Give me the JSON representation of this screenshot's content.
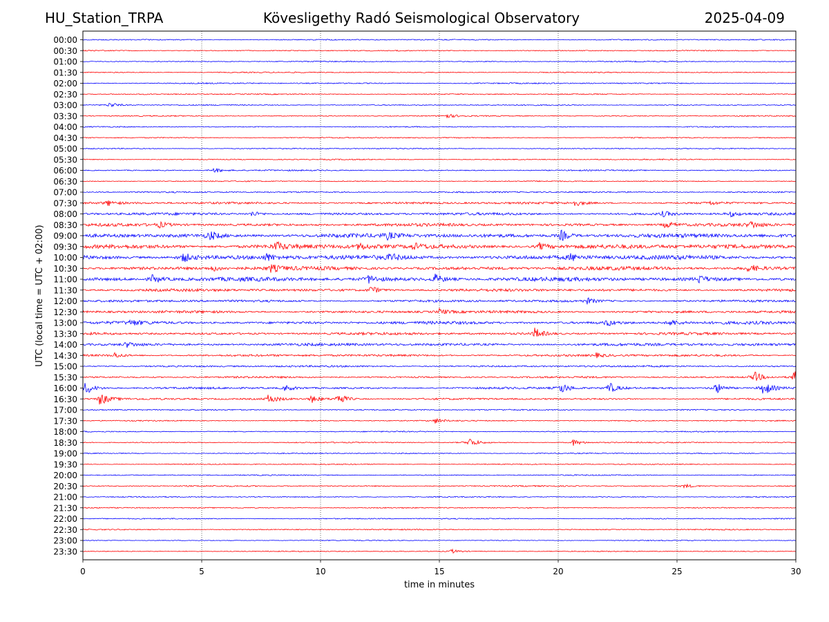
{
  "header": {
    "station": "HU_Station_TRPA",
    "observatory": "Kövesligethy Radó Seismological Observatory",
    "date": "2025-04-09"
  },
  "chart_data": {
    "type": "line",
    "title": "Kövesligethy Radó Seismological Observatory",
    "xlabel": "time in minutes",
    "ylabel": "UTC (local time = UTC + 02:00)",
    "xlim": [
      0,
      30
    ],
    "xticks": [
      0,
      5,
      10,
      15,
      20,
      25,
      30
    ],
    "grid": "vertical dotted lines at 5-minute intervals",
    "colors": {
      "even_rows": "#0000ff",
      "odd_rows": "#ff0000"
    },
    "rows": [
      "00:00",
      "00:30",
      "01:00",
      "01:30",
      "02:00",
      "02:30",
      "03:00",
      "03:30",
      "04:00",
      "04:30",
      "05:00",
      "05:30",
      "06:00",
      "06:30",
      "07:00",
      "07:30",
      "08:00",
      "08:30",
      "09:00",
      "09:30",
      "10:00",
      "10:30",
      "11:00",
      "11:30",
      "12:00",
      "12:30",
      "13:00",
      "13:30",
      "14:00",
      "14:30",
      "15:00",
      "15:30",
      "16:00",
      "16:30",
      "17:00",
      "17:30",
      "18:00",
      "18:30",
      "19:00",
      "19:30",
      "20:00",
      "20:30",
      "21:00",
      "21:30",
      "22:00",
      "22:30",
      "23:00",
      "23:30"
    ],
    "noise_level": [
      0.6,
      0.6,
      0.6,
      0.6,
      0.7,
      0.6,
      0.6,
      0.6,
      0.6,
      0.6,
      0.6,
      0.6,
      0.7,
      0.6,
      0.8,
      1.2,
      1.4,
      1.6,
      2.2,
      2.4,
      2.4,
      2.0,
      2.2,
      1.5,
      1.3,
      1.4,
      1.6,
      1.4,
      1.5,
      1.2,
      1.0,
      1.0,
      1.1,
      1.0,
      0.7,
      0.6,
      0.6,
      0.6,
      0.6,
      0.6,
      0.6,
      0.7,
      0.6,
      0.6,
      0.6,
      0.6,
      0.5,
      0.5
    ],
    "events": [
      {
        "row": "03:00",
        "t": 1.1,
        "amp": 4
      },
      {
        "row": "03:30",
        "t": 15.3,
        "amp": 3
      },
      {
        "row": "06:00",
        "t": 5.5,
        "amp": 4
      },
      {
        "row": "07:30",
        "t": 1.0,
        "amp": 4
      },
      {
        "row": "07:30",
        "t": 20.7,
        "amp": 4
      },
      {
        "row": "07:30",
        "t": 26.3,
        "amp": 3
      },
      {
        "row": "08:00",
        "t": 7.1,
        "amp": 4
      },
      {
        "row": "08:00",
        "t": 24.4,
        "amp": 4
      },
      {
        "row": "08:00",
        "t": 27.2,
        "amp": 4
      },
      {
        "row": "08:30",
        "t": 3.2,
        "amp": 4
      },
      {
        "row": "08:30",
        "t": 24.5,
        "amp": 5
      },
      {
        "row": "08:30",
        "t": 28.1,
        "amp": 5
      },
      {
        "row": "09:00",
        "t": 5.3,
        "amp": 7
      },
      {
        "row": "09:00",
        "t": 20.1,
        "amp": 8
      },
      {
        "row": "09:00",
        "t": 12.8,
        "amp": 4
      },
      {
        "row": "09:30",
        "t": 8.1,
        "amp": 6
      },
      {
        "row": "09:30",
        "t": 11.6,
        "amp": 5
      },
      {
        "row": "09:30",
        "t": 13.9,
        "amp": 4
      },
      {
        "row": "09:30",
        "t": 19.2,
        "amp": 5
      },
      {
        "row": "10:00",
        "t": 4.2,
        "amp": 7
      },
      {
        "row": "10:00",
        "t": 7.7,
        "amp": 5
      },
      {
        "row": "10:00",
        "t": 12.9,
        "amp": 5
      },
      {
        "row": "10:00",
        "t": 20.5,
        "amp": 5
      },
      {
        "row": "10:30",
        "t": 5.4,
        "amp": 4
      },
      {
        "row": "10:30",
        "t": 7.9,
        "amp": 5
      },
      {
        "row": "10:30",
        "t": 28.0,
        "amp": 6
      },
      {
        "row": "11:00",
        "t": 2.9,
        "amp": 6
      },
      {
        "row": "11:00",
        "t": 12.0,
        "amp": 6
      },
      {
        "row": "11:00",
        "t": 14.8,
        "amp": 7
      },
      {
        "row": "11:00",
        "t": 25.9,
        "amp": 5
      },
      {
        "row": "11:30",
        "t": 12.1,
        "amp": 6
      },
      {
        "row": "12:00",
        "t": 21.2,
        "amp": 4
      },
      {
        "row": "12:30",
        "t": 15.0,
        "amp": 4
      },
      {
        "row": "13:00",
        "t": 2.0,
        "amp": 4
      },
      {
        "row": "13:00",
        "t": 22.0,
        "amp": 5
      },
      {
        "row": "13:00",
        "t": 24.7,
        "amp": 5
      },
      {
        "row": "13:30",
        "t": 19.0,
        "amp": 8
      },
      {
        "row": "14:00",
        "t": 1.8,
        "amp": 4
      },
      {
        "row": "14:30",
        "t": 1.3,
        "amp": 4
      },
      {
        "row": "14:30",
        "t": 21.6,
        "amp": 3
      },
      {
        "row": "15:30",
        "t": 28.2,
        "amp": 9
      },
      {
        "row": "15:30",
        "t": 29.9,
        "amp": 11
      },
      {
        "row": "16:00",
        "t": 0.1,
        "amp": 10
      },
      {
        "row": "16:00",
        "t": 8.5,
        "amp": 5
      },
      {
        "row": "16:00",
        "t": 20.1,
        "amp": 8
      },
      {
        "row": "16:00",
        "t": 22.1,
        "amp": 9
      },
      {
        "row": "16:00",
        "t": 26.6,
        "amp": 9
      },
      {
        "row": "16:00",
        "t": 28.6,
        "amp": 12
      },
      {
        "row": "16:30",
        "t": 0.7,
        "amp": 10
      },
      {
        "row": "16:30",
        "t": 7.8,
        "amp": 7
      },
      {
        "row": "16:30",
        "t": 9.6,
        "amp": 6
      },
      {
        "row": "16:30",
        "t": 10.7,
        "amp": 10
      },
      {
        "row": "17:30",
        "t": 14.8,
        "amp": 4
      },
      {
        "row": "18:30",
        "t": 16.2,
        "amp": 8
      },
      {
        "row": "18:30",
        "t": 20.6,
        "amp": 5
      },
      {
        "row": "20:30",
        "t": 25.3,
        "amp": 3
      },
      {
        "row": "23:30",
        "t": 15.5,
        "amp": 3
      }
    ]
  }
}
